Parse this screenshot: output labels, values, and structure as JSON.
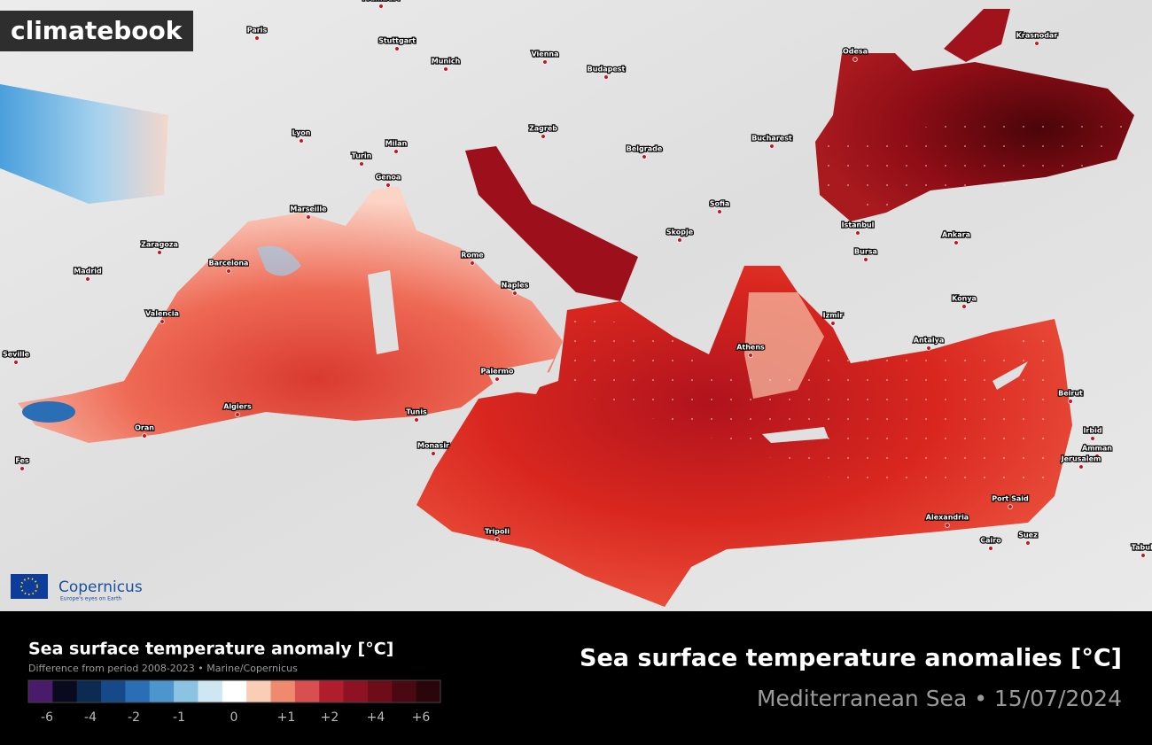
{
  "brand": "climatebook",
  "copernicus": {
    "name": "Copernicus",
    "tagline": "Europe's eyes on Earth"
  },
  "cities": [
    "Frankfurt",
    "Paris",
    "Stuttgart",
    "Munich",
    "Vienna",
    "Budapest",
    "Odesa",
    "Krasnodar",
    "Lyon",
    "Milan",
    "Zagreb",
    "Turin",
    "Belgrade",
    "Bucharest",
    "Genoa",
    "Marseille",
    "Sofia",
    "Zaragoza",
    "Barcelona",
    "Madrid",
    "Rome",
    "Skopje",
    "Istanbul",
    "Ankara",
    "Bursa",
    "Naples",
    "Valencia",
    "Konya",
    "Izmir",
    "Seville",
    "Athens",
    "Antalya",
    "Palermo",
    "Beirut",
    "Algiers",
    "Tunis",
    "Oran",
    "Irbid",
    "Amman",
    "Monasir",
    "Jerusalem",
    "Fes",
    "Port Said",
    "Alexandria",
    "Tripoli",
    "Cairo",
    "Suez",
    "Tabuk"
  ],
  "legend": {
    "title": "Sea surface temperature anomaly [°C]",
    "subtitle": "Difference from period 2008-2023 • Marine/Copernicus",
    "colors": [
      "#4a1a6b",
      "#0a0a1e",
      "#0d2a52",
      "#16498a",
      "#2a6fb5",
      "#4d95cd",
      "#8cc3e3",
      "#cfe6f3",
      "#ffffff",
      "#f9cdb6",
      "#ef8a6e",
      "#d94f4f",
      "#b01e2e",
      "#8f1224",
      "#6e0c1a",
      "#4a0812",
      "#2a0509"
    ],
    "labels": [
      "-6",
      "-4",
      "-2",
      "-1",
      "0",
      "+1",
      "+2",
      "+4",
      "+6"
    ]
  },
  "title": "Sea surface temperature anomalies [°C]",
  "subtitle": "Mediterranean Sea • 15/07/2024"
}
